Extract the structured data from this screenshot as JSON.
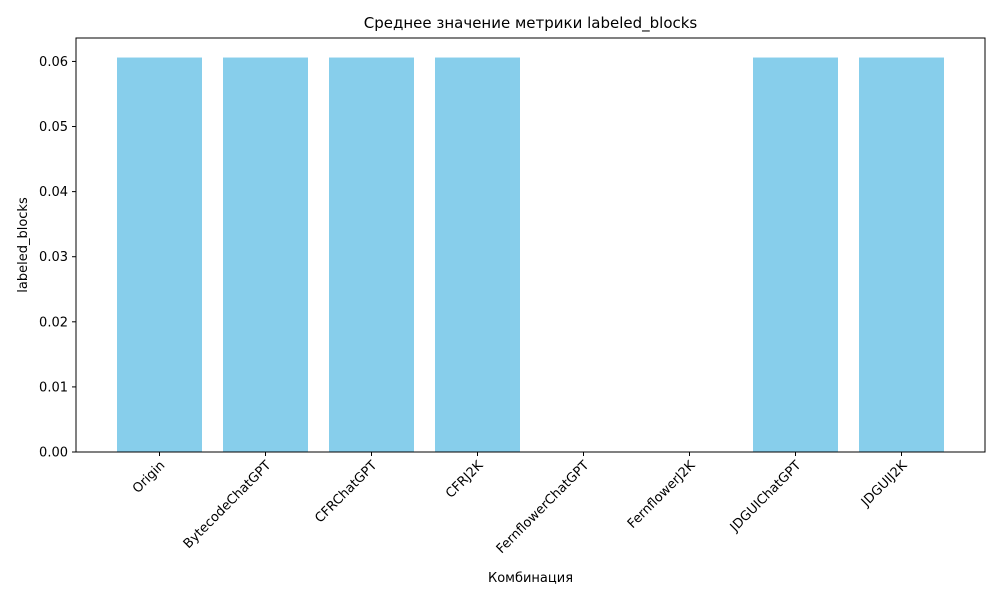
{
  "chart_data": {
    "type": "bar",
    "title": "Среднее значение метрики labeled_blocks",
    "xlabel": "Комбинация",
    "ylabel": "labeled_blocks",
    "categories": [
      "Origin",
      "BytecodeChatGPT",
      "CFRChatGPT",
      "CFRJ2K",
      "FernflowerChatGPT",
      "FernflowerJ2K",
      "JDGUIChatGPT",
      "JDGUIJ2K"
    ],
    "values": [
      0.0606,
      0.0606,
      0.0606,
      0.0606,
      0,
      0,
      0.0606,
      0.0606
    ],
    "ylim": [
      0,
      0.0636
    ],
    "yticks": [
      "0.00",
      "0.01",
      "0.02",
      "0.03",
      "0.04",
      "0.05",
      "0.06"
    ],
    "ytick_values": [
      0,
      0.01,
      0.02,
      0.03,
      0.04,
      0.05,
      0.06
    ],
    "bar_color": "#87CEEB",
    "grid": false,
    "xtick_rotation_deg": 45
  }
}
